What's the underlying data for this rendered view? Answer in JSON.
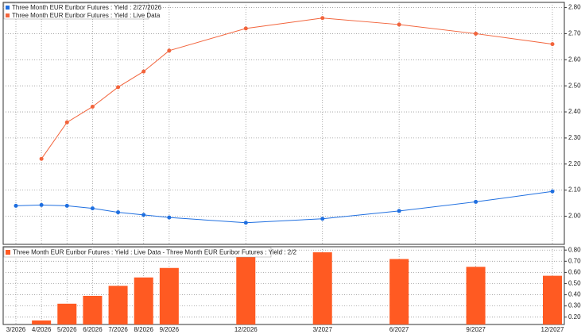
{
  "chart_data": [
    {
      "type": "line",
      "categories": [
        "3/2026",
        "4/2026",
        "5/2026",
        "6/2026",
        "7/2026",
        "8/2026",
        "9/2026",
        "12/2026",
        "3/2027",
        "6/2027",
        "9/2027",
        "12/2027"
      ],
      "series": [
        {
          "name": "Three Month EUR Euribor Futures : Yield : 2/27/2026",
          "color": "#1f6fe0",
          "values": [
            2.04,
            2.043,
            2.04,
            2.03,
            2.015,
            2.005,
            1.995,
            1.975,
            1.99,
            2.02,
            2.055,
            2.095
          ]
        },
        {
          "name": "Three Month EUR Euribor Futures : Yield : Live Data",
          "color": "#f2643c",
          "values": [
            null,
            2.22,
            2.36,
            2.42,
            2.495,
            2.555,
            2.635,
            2.72,
            2.76,
            2.735,
            2.7,
            2.66
          ]
        }
      ],
      "ylim": [
        1.892,
        2.82
      ],
      "yticks": [
        {
          "value": 2,
          "label": "2.00"
        },
        {
          "value": 2.1,
          "label": "2.10"
        },
        {
          "value": 2.2,
          "label": "2.20"
        },
        {
          "value": 2.3,
          "label": "2.30"
        },
        {
          "value": 2.4,
          "label": "2.40"
        },
        {
          "value": 2.5,
          "label": "2.50"
        },
        {
          "value": 2.6,
          "label": "2.60"
        },
        {
          "value": 2.7,
          "label": "2.70"
        },
        {
          "value": 2.8,
          "label": "2.80"
        }
      ],
      "grid": true
    },
    {
      "type": "bar",
      "categories": [
        "3/2026",
        "4/2026",
        "5/2026",
        "6/2026",
        "7/2026",
        "8/2026",
        "9/2026",
        "12/2026",
        "3/2027",
        "6/2027",
        "9/2027",
        "12/2027"
      ],
      "series": [
        {
          "name": "Three Month EUR Euribor Futures : Yield : Live Data - Three Month EUR Euribor Futures : Yield : 2/2",
          "color": "#ff5a22",
          "values": [
            null,
            0.17,
            0.32,
            0.39,
            0.48,
            0.555,
            0.64,
            0.76,
            0.78,
            0.72,
            0.65,
            0.57
          ]
        }
      ],
      "ylim": [
        0.134,
        0.83
      ],
      "yticks": [
        {
          "value": 0.2,
          "label": "0.20"
        },
        {
          "value": 0.3,
          "label": "0.30"
        },
        {
          "value": 0.4,
          "label": "0.40"
        },
        {
          "value": 0.5,
          "label": "0.50"
        },
        {
          "value": 0.6,
          "label": "0.60"
        },
        {
          "value": 0.7,
          "label": "0.70"
        },
        {
          "value": 0.8,
          "label": "0.80"
        }
      ],
      "grid": true
    }
  ]
}
